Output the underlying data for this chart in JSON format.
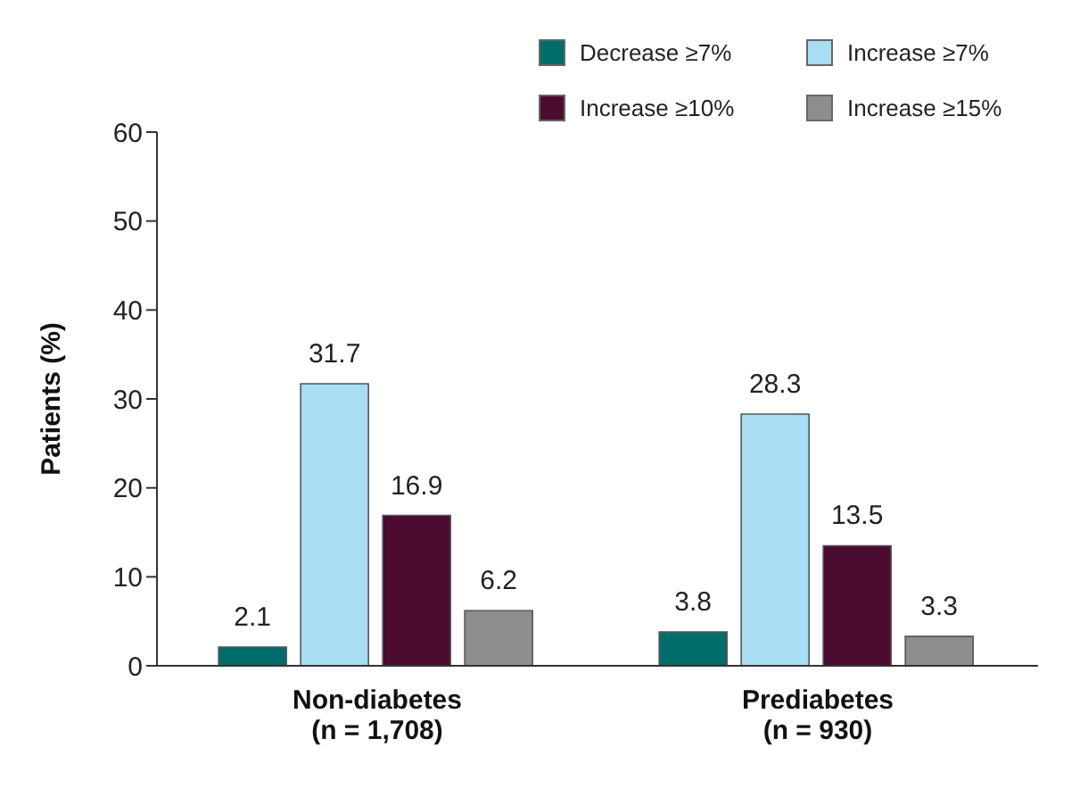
{
  "chart_data": {
    "type": "bar",
    "ylabel": "Patients (%)",
    "categories": [
      "Non-diabetes\n(n = 1,708)",
      "Prediabetes\n(n = 930)"
    ],
    "series": [
      {
        "name": "Decrease ≥7%",
        "color": "#006d6a",
        "values": [
          2.1,
          3.8
        ]
      },
      {
        "name": "Increase ≥7%",
        "color": "#a8ddf2",
        "values": [
          31.7,
          28.3
        ]
      },
      {
        "name": "Increase ≥10%",
        "color": "#4b0a30",
        "values": [
          16.9,
          13.5
        ]
      },
      {
        "name": "Increase ≥15%",
        "color": "#8e8e8e",
        "values": [
          6.2,
          3.3
        ]
      }
    ],
    "ylim": [
      0,
      60
    ],
    "yticks": [
      0,
      10,
      20,
      30,
      40,
      50,
      60
    ],
    "grid": false,
    "legend": "top right",
    "data_labels": true
  }
}
